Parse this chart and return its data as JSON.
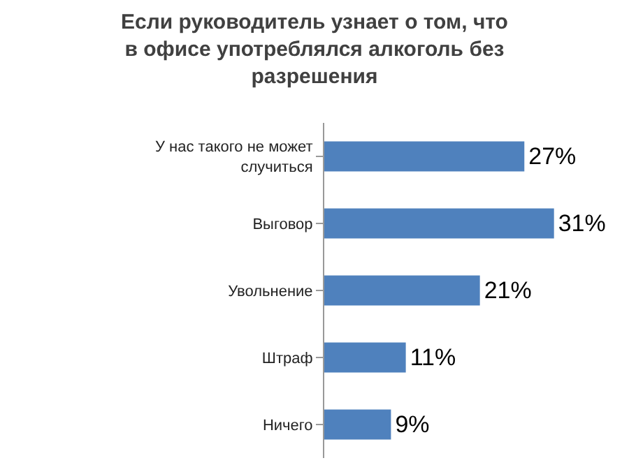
{
  "chart_data": {
    "type": "bar",
    "orientation": "horizontal",
    "title": "Если руководитель узнает о том, что в офисе употреблялся алкоголь без разрешения",
    "categories": [
      "У нас такого не может случиться",
      "Выговор",
      "Увольнение",
      "Штраф",
      "Ничего"
    ],
    "values": [
      27,
      31,
      21,
      11,
      9
    ],
    "value_labels": [
      "27%",
      "31%",
      "21%",
      "11%",
      "9%"
    ],
    "color": "#4f81bd",
    "grid": false,
    "legend": false
  }
}
